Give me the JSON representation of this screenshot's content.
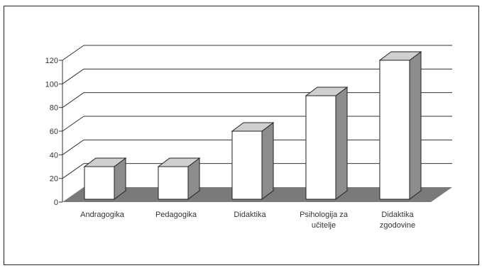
{
  "chart_data": {
    "type": "bar",
    "style": "3d-column",
    "categories": [
      "Andragogika",
      "Pedagogika",
      "Didaktika",
      "Psihologija za učitelje",
      "Didaktika zgodovine"
    ],
    "category_lines": [
      [
        "Andragogika"
      ],
      [
        "Pedagogika"
      ],
      [
        "Didaktika"
      ],
      [
        "Psihologija za",
        "učitelje"
      ],
      [
        "Didaktika",
        "zgodovine"
      ]
    ],
    "values": [
      30,
      30,
      60,
      90,
      120
    ],
    "title": "",
    "xlabel": "",
    "ylabel": "",
    "ylim": [
      0,
      120
    ],
    "yticks": [
      0,
      20,
      40,
      60,
      80,
      100,
      120
    ],
    "grid": true,
    "legend": "none",
    "colors": {
      "bar_front": "#ffffff",
      "bar_side": "#8c8c8c",
      "bar_top": "#cfcfcf",
      "floor": "#7a7a7a",
      "gridline": "#333333",
      "text": "#333333"
    }
  }
}
